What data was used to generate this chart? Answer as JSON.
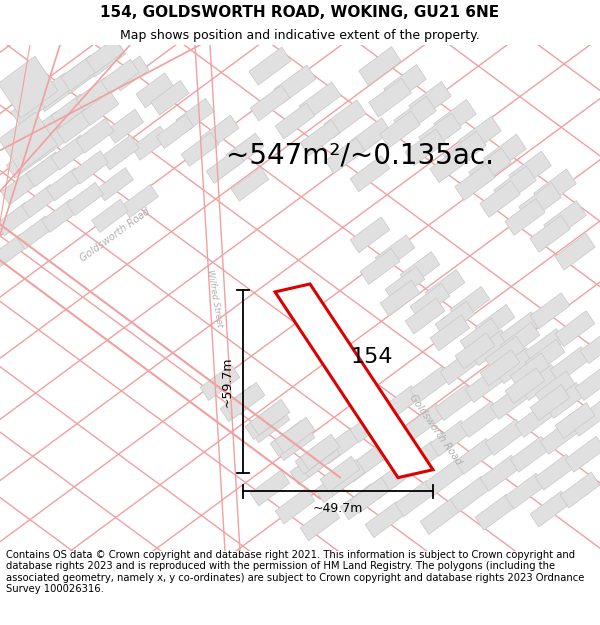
{
  "title": "154, GOLDSWORTH ROAD, WOKING, GU21 6NE",
  "subtitle": "Map shows position and indicative extent of the property.",
  "area_text": "~547m²/~0.135ac.",
  "property_label": "154",
  "dim_vertical": "~59.7m",
  "dim_horizontal": "~49.7m",
  "footer": "Contains OS data © Crown copyright and database right 2021. This information is subject to Crown copyright and database rights 2023 and is reproduced with the permission of HM Land Registry. The polygons (including the associated geometry, namely x, y co-ordinates) are subject to Crown copyright and database rights 2023 Ordnance Survey 100026316.",
  "bg_color": "#ffffff",
  "road_color": "#f0a0a0",
  "building_fill": "#e0e0e0",
  "building_edge": "#c8c8c8",
  "property_color": "#dd0000",
  "road_label_color": "#aaaaaa",
  "title_fontsize": 11,
  "subtitle_fontsize": 9,
  "area_fontsize": 20,
  "label_fontsize": 16,
  "footer_fontsize": 7.2,
  "dim_fontsize": 9
}
